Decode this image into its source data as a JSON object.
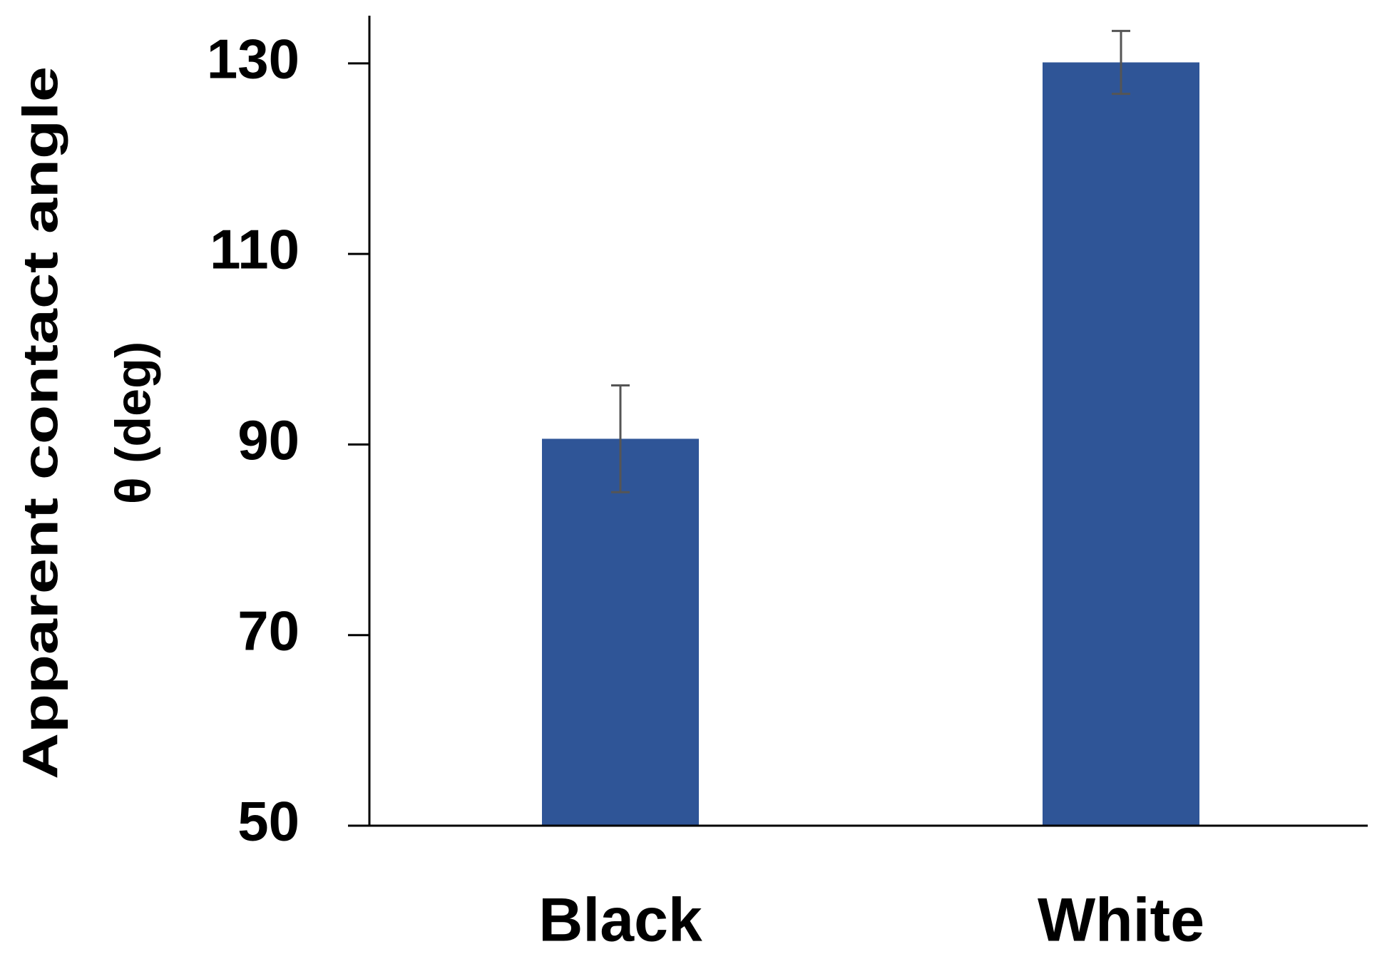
{
  "chart_data": {
    "type": "bar",
    "ylabel": [
      "Apparent contact angle",
      "θ (deg)"
    ],
    "categories": [
      "Black",
      "White"
    ],
    "values": [
      90.6,
      130.1
    ],
    "errors": [
      5.6,
      3.3
    ],
    "color": "#2f5597",
    "error_color": "#555555",
    "ylim": [
      50,
      135
    ],
    "yticks": [
      50,
      70,
      90,
      110,
      130
    ],
    "grid": false
  }
}
